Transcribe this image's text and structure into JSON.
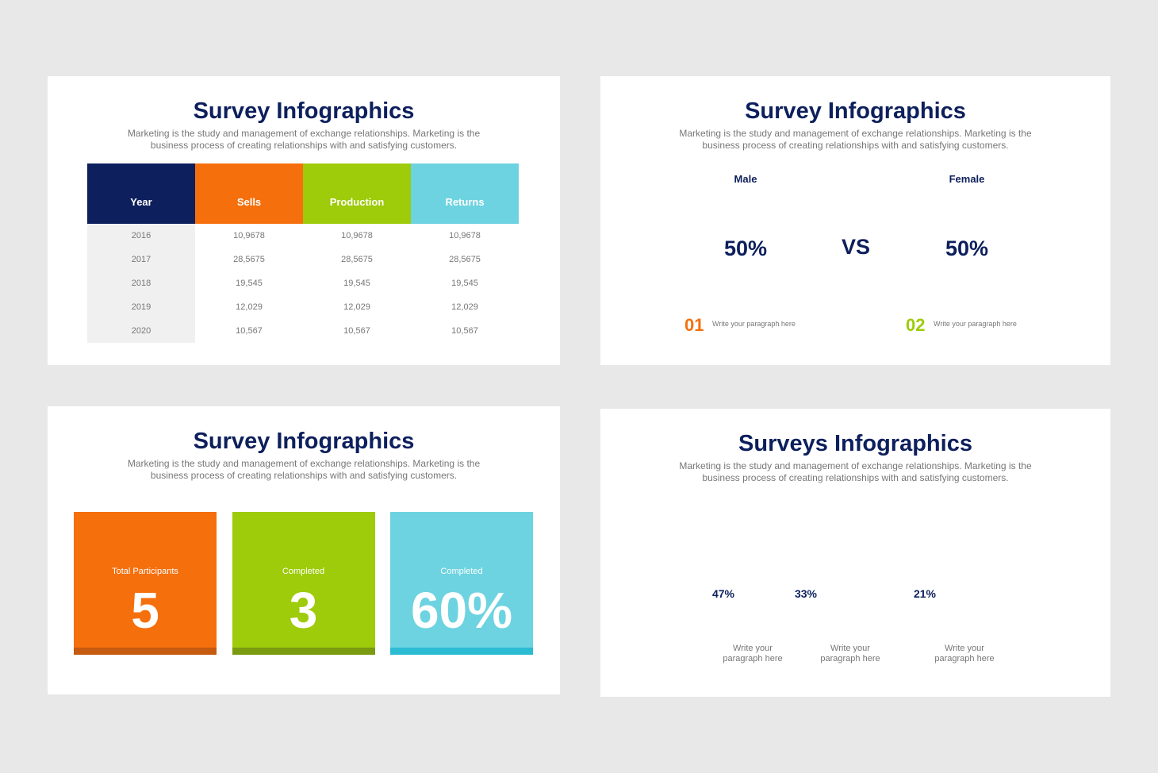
{
  "slides": [
    {
      "title": "Survey Infographics",
      "subtitle": "Marketing is the study and management of exchange relationships. Marketing is the business process of creating relationships with and satisfying customers.",
      "table": {
        "headers": [
          "Year",
          "Sells",
          "Production",
          "Returns"
        ],
        "rows": [
          [
            "2016",
            "10,9678",
            "10,9678",
            "10,9678"
          ],
          [
            "2017",
            "28,5675",
            "28,5675",
            "28,5675"
          ],
          [
            "2018",
            "19,545",
            "19,545",
            "19,545"
          ],
          [
            "2019",
            "12,029",
            "12,029",
            "12,029"
          ],
          [
            "2020",
            "10,567",
            "10,567",
            "10,567"
          ]
        ]
      }
    },
    {
      "title": "Survey Infographics",
      "subtitle": "Marketing is the study and management of exchange relationships. Marketing is the business process of creating relationships with and satisfying customers.",
      "vs": "VS",
      "groups": [
        {
          "label": "Male",
          "value": {
            "value": 50,
            "label": "50%"
          },
          "number": "01",
          "text": "Write your paragraph here"
        },
        {
          "label": "Female",
          "value": {
            "value": 50,
            "label": "50%"
          },
          "number": "02",
          "text": "Write your paragraph here"
        }
      ]
    },
    {
      "title": "Survey Infographics",
      "subtitle": "Marketing is the study and management of exchange relationships. Marketing is the business process of creating relationships with and satisfying customers.",
      "cards": [
        {
          "label": "Total Participants",
          "value": "5"
        },
        {
          "label": "Completed",
          "value": "3"
        },
        {
          "label": "Completed",
          "value": "60%"
        }
      ]
    },
    {
      "title": "Surveys Infographics",
      "subtitle": "Marketing is the study and management of exchange relationships. Marketing is the business process of creating relationships with and satisfying customers.",
      "people": [
        {
          "percent": "47%",
          "text": "Write your paragraph here"
        },
        {
          "percent": "33%",
          "text": "Write your paragraph here"
        },
        {
          "percent": "21%",
          "text": "Write your paragraph here"
        }
      ]
    }
  ]
}
